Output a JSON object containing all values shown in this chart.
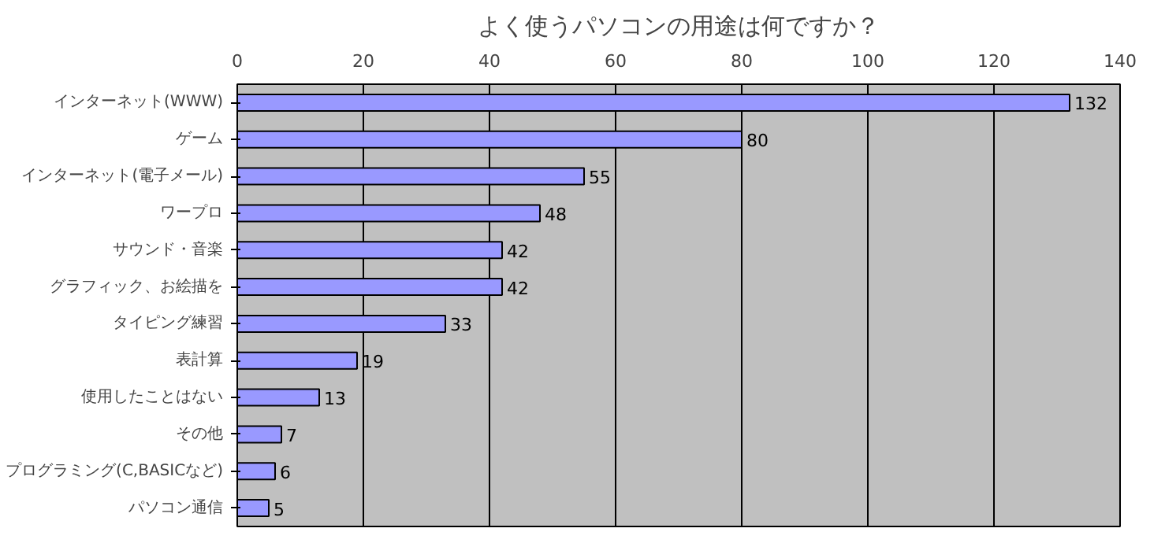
{
  "chart_data": {
    "type": "bar",
    "orientation": "horizontal",
    "title": "よく使うパソコンの用途は何ですか？",
    "categories": [
      "インターネット(WWW)",
      "ゲーム",
      "インターネット(電子メール)",
      "ワープロ",
      "サウンド・音楽",
      "グラフィック、お絵描を",
      "タイピング練習",
      "表計算",
      "使用したことはない",
      "その他",
      "プログラミング(C,BASICなど)",
      "パソコン通信"
    ],
    "values": [
      132,
      80,
      55,
      48,
      42,
      42,
      33,
      19,
      13,
      7,
      6,
      5
    ],
    "color": "#9999ff",
    "xlim": [
      0,
      140
    ],
    "xticks": [
      0,
      20,
      40,
      60,
      80,
      100,
      120,
      140
    ],
    "grid": "x",
    "data_labels": true
  }
}
